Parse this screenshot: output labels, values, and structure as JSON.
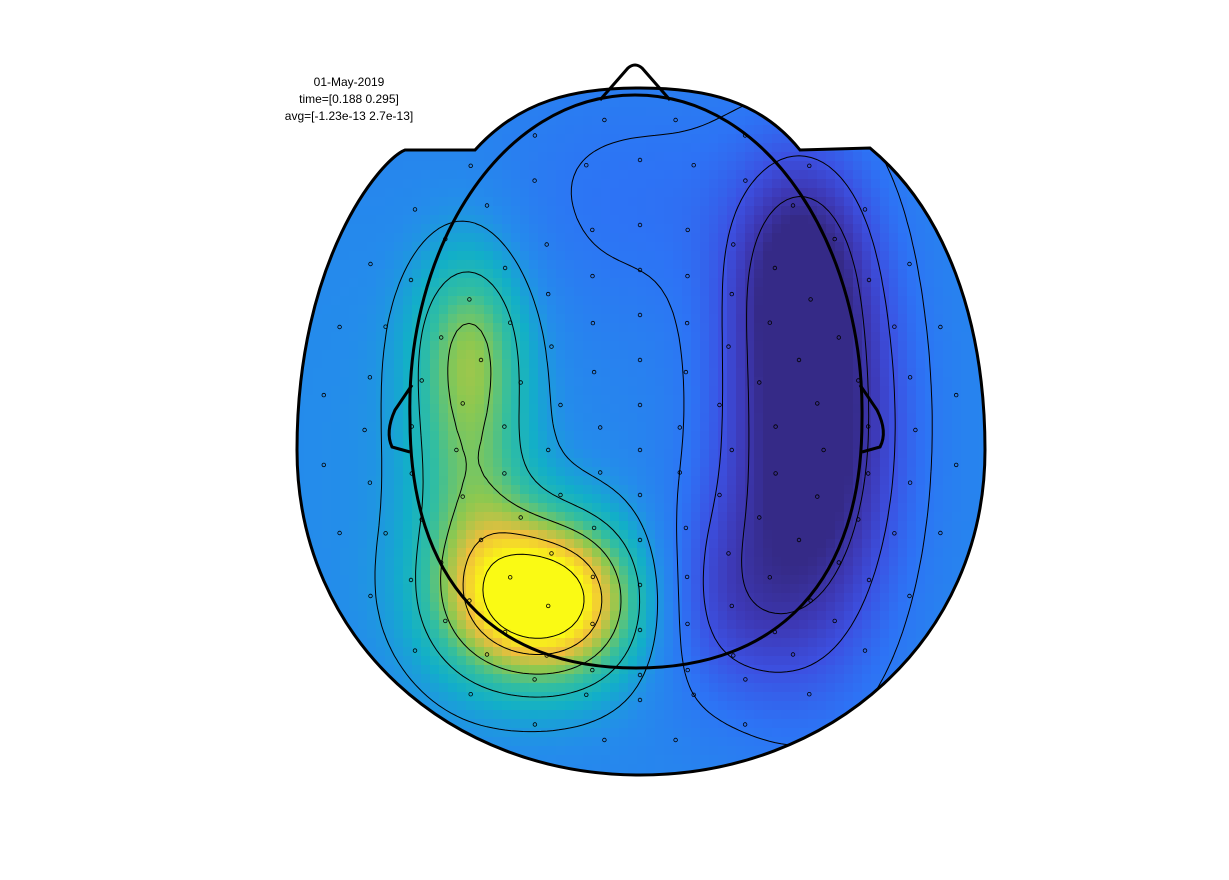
{
  "header": {
    "date": "01-May-2019",
    "time": "time=[0.188 0.295]",
    "avg": "avg=[-1.23e-13 2.7e-13]"
  },
  "chart_data": {
    "type": "heatmap",
    "title": "",
    "colormap": "parula",
    "colors": {
      "low": "#3b2e9e",
      "mid": "#2f86f0",
      "teal": "#12b6c4",
      "green": "#8cc94a",
      "high": "#f9fb0e",
      "outline": "#000000"
    },
    "clim": [
      -1.23e-13,
      2.7e-13
    ],
    "time_window": [
      0.188,
      0.295
    ],
    "date": "01-May-2019",
    "sensor_count": 151,
    "sources": [
      {
        "kind": "positive-peak",
        "location": "left-posterior",
        "relative_amplitude": 1.0
      },
      {
        "kind": "negative-peak",
        "location": "right-temporal",
        "relative_amplitude": -1.0
      },
      {
        "kind": "positive-ridge",
        "location": "left-temporal",
        "relative_amplitude": 0.35
      }
    ],
    "contour_levels": 8,
    "grid": false,
    "legend": "none"
  }
}
